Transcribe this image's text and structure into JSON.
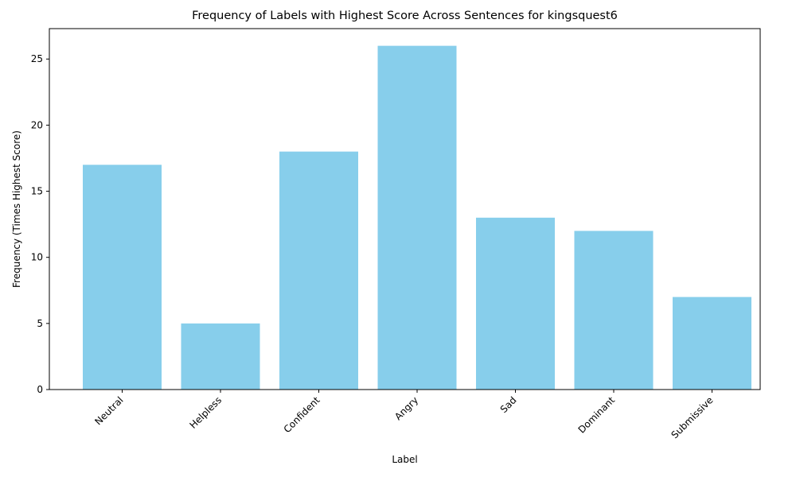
{
  "chart_data": {
    "type": "bar",
    "title": "Frequency of Labels with Highest Score Across Sentences for kingsquest6",
    "xlabel": "Label",
    "ylabel": "Frequency (Times Highest Score)",
    "categories": [
      "Neutral",
      "Helpless",
      "Confident",
      "Angry",
      "Sad",
      "Dominant",
      "Submissive"
    ],
    "values": [
      17,
      5,
      18,
      26,
      13,
      12,
      7
    ],
    "ylim": [
      0,
      27.3
    ],
    "yticks": [
      0,
      5,
      10,
      15,
      20,
      25
    ],
    "bar_color": "#87CEEB",
    "grid": false,
    "legend": "none"
  }
}
